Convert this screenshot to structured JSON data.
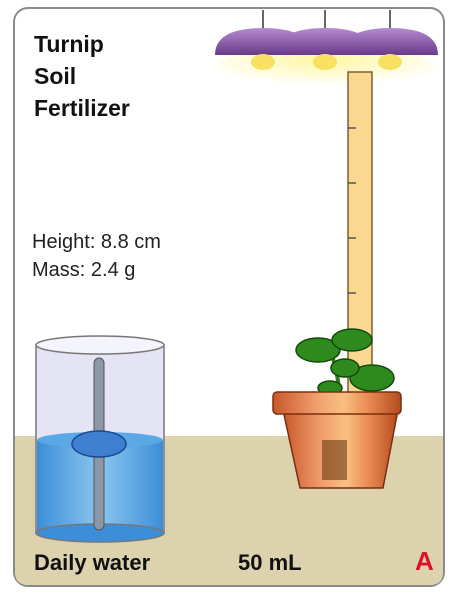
{
  "plant": {
    "name": "Turnip",
    "conditions": [
      "Soil",
      "Fertilizer"
    ]
  },
  "measurements": {
    "height": "Height: 8.8 cm",
    "mass": "Mass: 2.4 g"
  },
  "water": {
    "label": "Daily water",
    "amount": "50 mL"
  },
  "group": "A"
}
